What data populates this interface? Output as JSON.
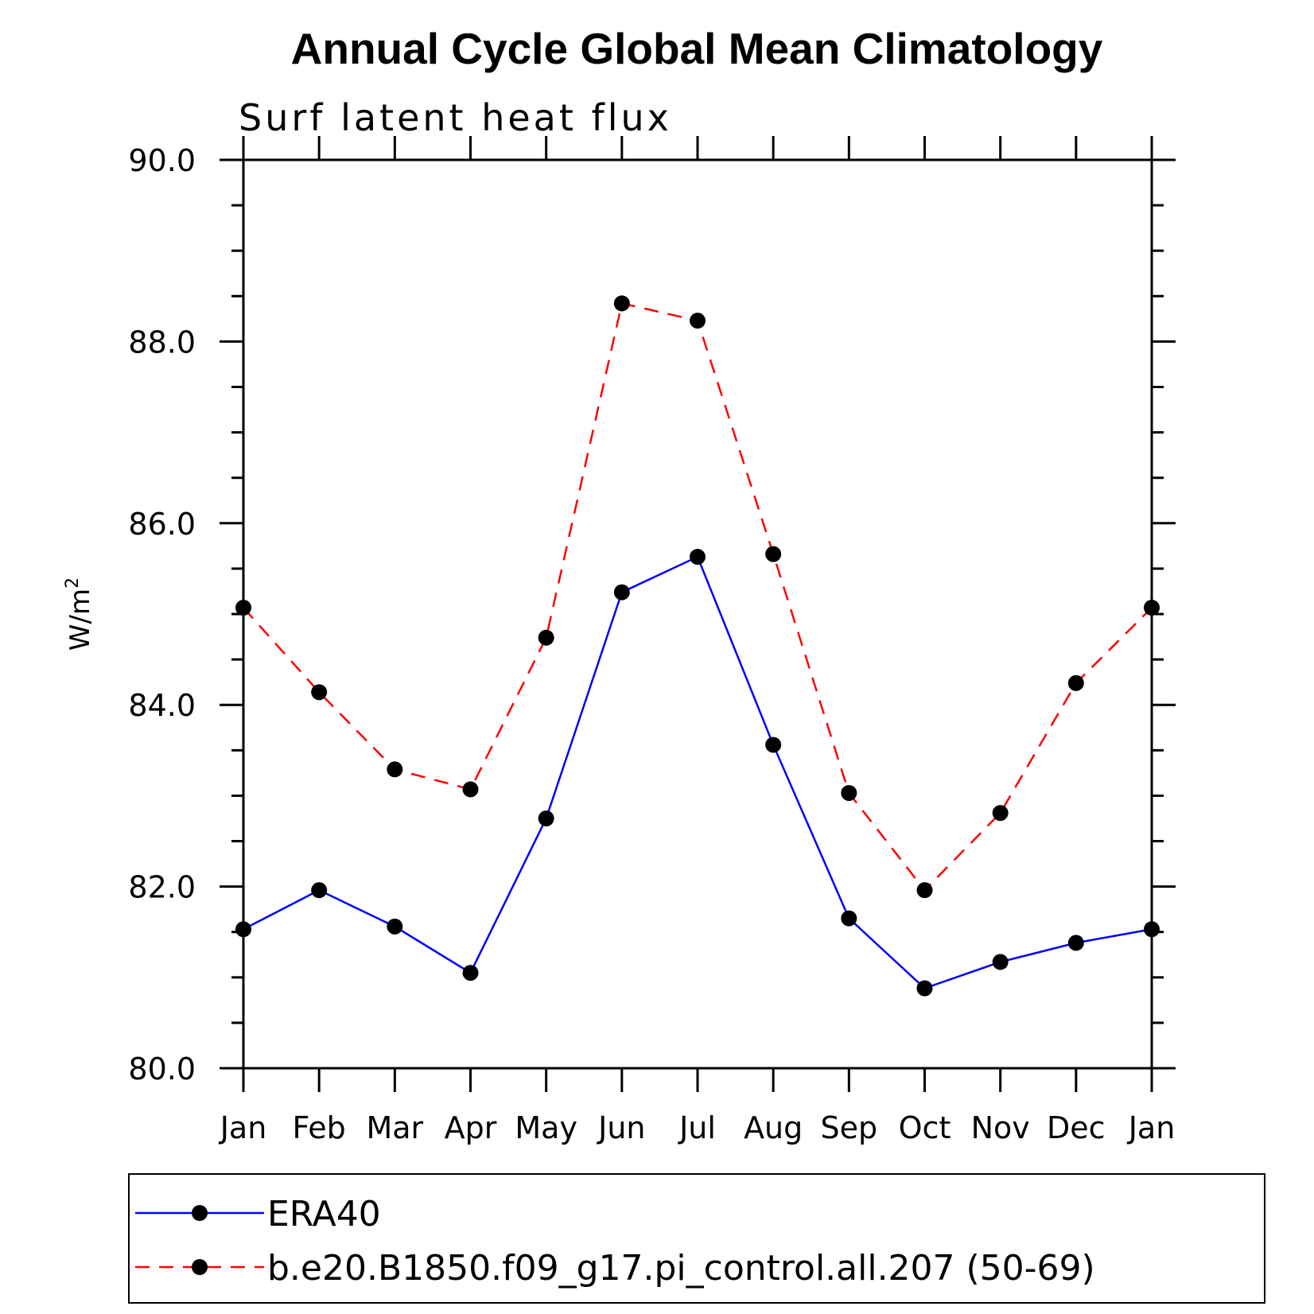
{
  "chart_data": {
    "type": "line",
    "title": "Annual Cycle Global Mean Climatology",
    "subtitle": "Surf latent heat flux",
    "xlabel": "",
    "ylabel": "W/m",
    "ylabel_sup": "2",
    "categories": [
      "Jan",
      "Feb",
      "Mar",
      "Apr",
      "May",
      "Jun",
      "Jul",
      "Aug",
      "Sep",
      "Oct",
      "Nov",
      "Dec",
      "Jan"
    ],
    "ylim": [
      80.0,
      90.0
    ],
    "yticks": [
      "80.0",
      "82.0",
      "84.0",
      "86.0",
      "88.0",
      "90.0"
    ],
    "grid": false,
    "legend_position": "bottom",
    "series": [
      {
        "name": "ERA40",
        "color": "#0000ff",
        "dashed": false,
        "values": [
          81.53,
          81.96,
          81.56,
          81.05,
          82.75,
          85.24,
          85.63,
          83.56,
          81.65,
          80.88,
          81.17,
          81.38,
          81.53
        ]
      },
      {
        "name": "b.e20.B1850.f09_g17.pi_control.all.207 (50-69)",
        "color": "#ff0000",
        "dashed": true,
        "values": [
          85.07,
          84.14,
          83.29,
          83.07,
          84.74,
          88.42,
          88.23,
          85.66,
          83.03,
          81.96,
          82.81,
          84.24,
          85.07
        ]
      }
    ]
  }
}
